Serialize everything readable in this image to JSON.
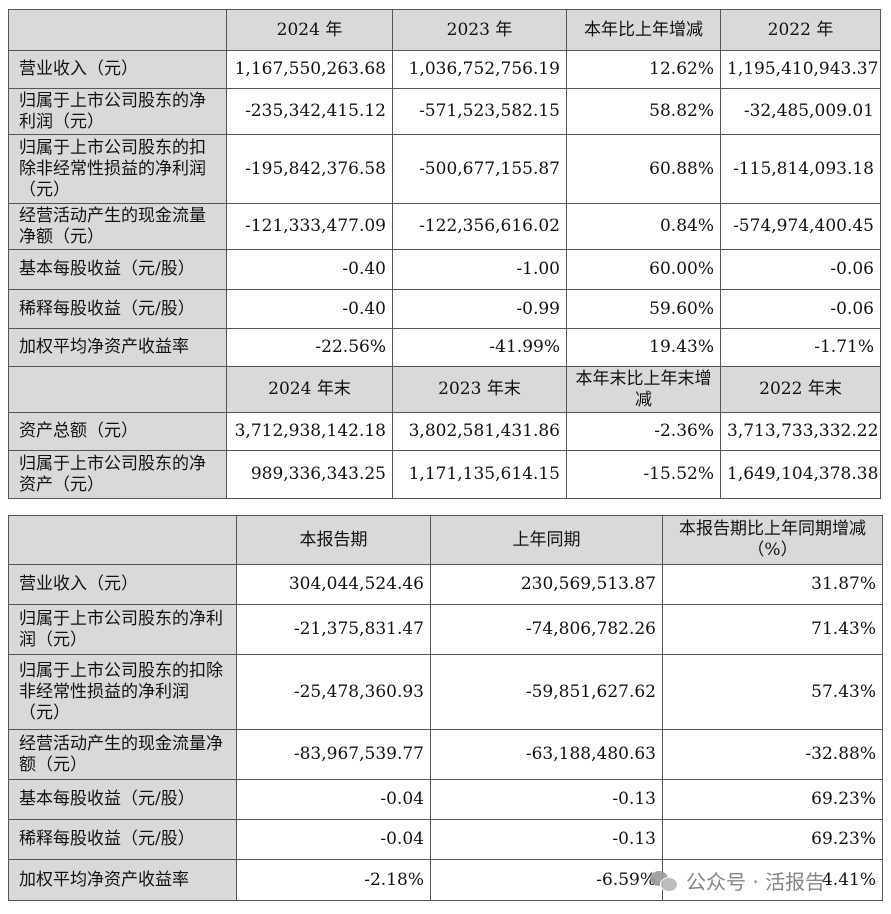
{
  "table1": {
    "header1": [
      "",
      "2024 年",
      "2023 年",
      "本年比上年增减",
      "2022 年"
    ],
    "rows1": [
      {
        "label": "营业收入（元）",
        "v": [
          "1,167,550,263.68",
          "1,036,752,756.19",
          "12.62%",
          "1,195,410,943.37"
        ]
      },
      {
        "label": "归属于上市公司股东的净利润（元）",
        "v": [
          "-235,342,415.12",
          "-571,523,582.15",
          "58.82%",
          "-32,485,009.01"
        ]
      },
      {
        "label": "归属于上市公司股东的扣除非经常性损益的净利润（元）",
        "v": [
          "-195,842,376.58",
          "-500,677,155.87",
          "60.88%",
          "-115,814,093.18"
        ]
      },
      {
        "label": "经营活动产生的现金流量净额（元）",
        "v": [
          "-121,333,477.09",
          "-122,356,616.02",
          "0.84%",
          "-574,974,400.45"
        ]
      },
      {
        "label": "基本每股收益（元/股）",
        "v": [
          "-0.40",
          "-1.00",
          "60.00%",
          "-0.06"
        ]
      },
      {
        "label": "稀释每股收益（元/股）",
        "v": [
          "-0.40",
          "-0.99",
          "59.60%",
          "-0.06"
        ]
      },
      {
        "label": "加权平均净资产收益率",
        "v": [
          "-22.56%",
          "-41.99%",
          "19.43%",
          "-1.71%"
        ]
      }
    ],
    "header2": [
      "",
      "2024 年末",
      "2023 年末",
      "本年末比上年末增减",
      "2022 年末"
    ],
    "rows2": [
      {
        "label": "资产总额（元）",
        "v": [
          "3,712,938,142.18",
          "3,802,581,431.86",
          "-2.36%",
          "3,713,733,332.22"
        ]
      },
      {
        "label": "归属于上市公司股东的净资产（元）",
        "v": [
          "989,336,343.25",
          "1,171,135,614.15",
          "-15.52%",
          "1,649,104,378.38"
        ]
      }
    ]
  },
  "table2": {
    "header": [
      "",
      "本报告期",
      "上年同期",
      "本报告期比上年同期增减（%）"
    ],
    "rows": [
      {
        "label": "营业收入（元）",
        "v": [
          "304,044,524.46",
          "230,569,513.87",
          "31.87%"
        ]
      },
      {
        "label": "归属于上市公司股东的净利润（元）",
        "v": [
          "-21,375,831.47",
          "-74,806,782.26",
          "71.43%"
        ]
      },
      {
        "label": "归属于上市公司股东的扣除非经常性损益的净利润（元）",
        "v": [
          "-25,478,360.93",
          "-59,851,627.62",
          "57.43%"
        ]
      },
      {
        "label": "经营活动产生的现金流量净额（元）",
        "v": [
          "-83,967,539.77",
          "-63,188,480.63",
          "-32.88%"
        ]
      },
      {
        "label": "基本每股收益（元/股）",
        "v": [
          "-0.04",
          "-0.13",
          "69.23%"
        ]
      },
      {
        "label": "稀释每股收益（元/股）",
        "v": [
          "-0.04",
          "-0.13",
          "69.23%"
        ]
      },
      {
        "label": "加权平均净资产收益率",
        "v": [
          "-2.18%",
          "-6.59%",
          "4.41%"
        ]
      }
    ]
  },
  "watermark": {
    "text": "公众号 · 活报告",
    "icon": "wechat-icon"
  }
}
